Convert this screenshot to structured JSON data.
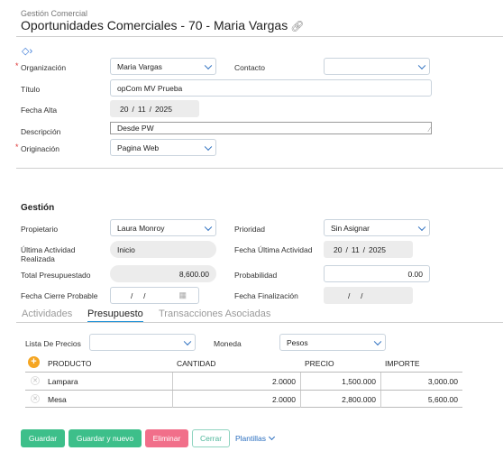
{
  "header": {
    "breadcrumb": "Gestión Comercial",
    "title": "Oportunidades Comerciales - 70 - Maria Vargas"
  },
  "form": {
    "organizacion": {
      "label": "Organización",
      "value": "Maria Vargas"
    },
    "contacto": {
      "label": "Contacto",
      "value": ""
    },
    "titulo": {
      "label": "Título",
      "value": "opCom MV Prueba"
    },
    "fecha_alta": {
      "label": "Fecha Alta",
      "day": "20",
      "month": "11",
      "year": "2025"
    },
    "descripcion": {
      "label": "Descripción",
      "value": "Desde PW"
    },
    "originacion": {
      "label": "Originación",
      "value": "Pagina Web"
    }
  },
  "gestion": {
    "section_title": "Gestión",
    "propietario": {
      "label": "Propietario",
      "value": "Laura Monroy"
    },
    "prioridad": {
      "label": "Prioridad",
      "value": "Sin Asignar"
    },
    "ultima_actividad": {
      "label": "Última Actividad Realizada",
      "value": "Inicio"
    },
    "fecha_ultima_actividad": {
      "label": "Fecha Última Actividad",
      "day": "20",
      "month": "11",
      "year": "2025"
    },
    "total_presupuestado": {
      "label": "Total Presupuestado",
      "value": "8,600.00"
    },
    "probabilidad": {
      "label": "Probabilidad",
      "value": "0.00"
    },
    "fecha_cierre": {
      "label": "Fecha Cierre Probable",
      "value": "/     /"
    },
    "fecha_finalizacion": {
      "label": "Fecha Finalización",
      "value": "/     /"
    }
  },
  "tabs": [
    {
      "label": "Actividades",
      "active": false
    },
    {
      "label": "Presupuesto",
      "active": true
    },
    {
      "label": "Transacciones Asociadas",
      "active": false
    }
  ],
  "presupuesto": {
    "lista_precios": {
      "label": "Lista De Precios",
      "value": ""
    },
    "moneda": {
      "label": "Moneda",
      "value": "Pesos"
    },
    "columns": [
      "PRODUCTO",
      "CANTIDAD",
      "PRECIO",
      "IMPORTE"
    ],
    "rows": [
      {
        "producto": "Lampara",
        "cantidad": "2.0000",
        "precio": "1,500.000",
        "importe": "3,000.00"
      },
      {
        "producto": "Mesa",
        "cantidad": "2.0000",
        "precio": "2,800.000",
        "importe": "5,600.00"
      }
    ]
  },
  "buttons": {
    "guardar": "Guardar",
    "guardar_nuevo": "Guardar y nuevo",
    "eliminar": "Eliminar",
    "cerrar": "Cerrar",
    "plantillas": "Plantillas"
  },
  "colors": {
    "accent_blue": "#2a6ebf",
    "save_green": "#3dbf8a",
    "delete_pink": "#f16f8a",
    "add_orange": "#f5a623"
  },
  "icons": {
    "title_link": "link-icon",
    "tag": "tag-icon",
    "add": "plus-circle-icon",
    "delete_row": "close-icon",
    "calendar": "calendar-icon"
  }
}
